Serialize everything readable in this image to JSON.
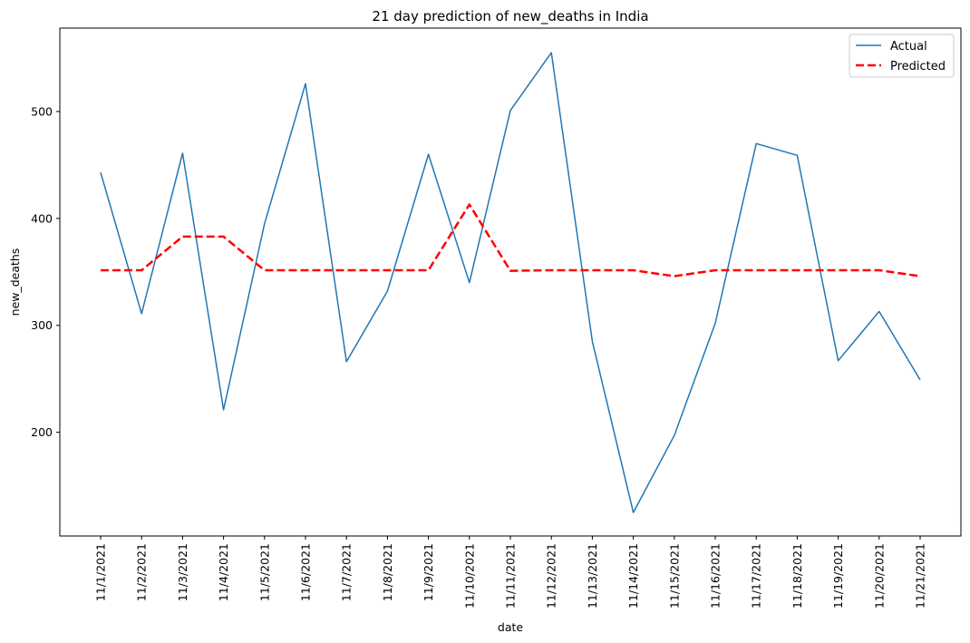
{
  "chart_data": {
    "type": "line",
    "title": "21 day prediction of new_deaths in India",
    "xlabel": "date",
    "ylabel": "new_deaths",
    "categories": [
      "11/1/2021",
      "11/2/2021",
      "11/3/2021",
      "11/4/2021",
      "11/5/2021",
      "11/6/2021",
      "11/7/2021",
      "11/8/2021",
      "11/9/2021",
      "11/10/2021",
      "11/11/2021",
      "11/12/2021",
      "11/13/2021",
      "11/14/2021",
      "11/15/2021",
      "11/16/2021",
      "11/17/2021",
      "11/18/2021",
      "11/19/2021",
      "11/20/2021",
      "11/21/2021"
    ],
    "yticks": [
      200,
      300,
      400,
      500
    ],
    "ylim": [
      103,
      578
    ],
    "grid": false,
    "legend_position": "top-right",
    "series": [
      {
        "name": "Actual",
        "color": "#1f77b4",
        "style": "solid",
        "values": [
          443,
          311,
          461,
          221,
          395,
          526,
          266,
          332,
          460,
          340,
          501,
          555,
          285,
          125,
          197,
          302,
          470,
          459,
          267,
          313,
          249
        ]
      },
      {
        "name": "Predicted",
        "color": "#ff0000",
        "style": "dashed",
        "values": [
          351.5,
          351.5,
          383,
          383,
          351.5,
          351.5,
          351.5,
          351.5,
          351.5,
          413,
          351,
          351.5,
          351.5,
          351.5,
          346,
          351.5,
          351.5,
          351.5,
          351.5,
          351.5,
          346
        ]
      }
    ]
  }
}
